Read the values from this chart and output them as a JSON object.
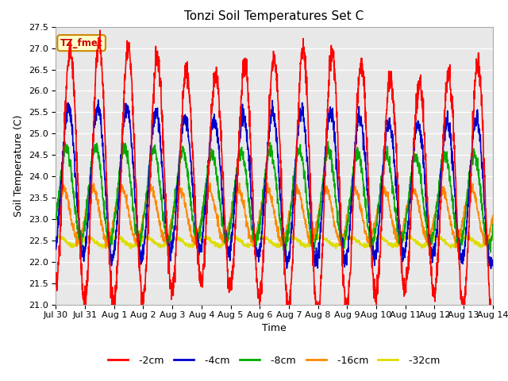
{
  "title": "Tonzi Soil Temperatures Set C",
  "xlabel": "Time",
  "ylabel": "Soil Temperature (C)",
  "ylim": [
    21.0,
    27.5
  ],
  "yticks": [
    21.0,
    21.5,
    22.0,
    22.5,
    23.0,
    23.5,
    24.0,
    24.5,
    25.0,
    25.5,
    26.0,
    26.5,
    27.0,
    27.5
  ],
  "series": {
    "-2cm": {
      "color": "#ff0000",
      "lw": 1.2
    },
    "-4cm": {
      "color": "#0000cc",
      "lw": 1.2
    },
    "-8cm": {
      "color": "#00aa00",
      "lw": 1.2
    },
    "-16cm": {
      "color": "#ff8800",
      "lw": 1.2
    },
    "-32cm": {
      "color": "#dddd00",
      "lw": 1.2
    }
  },
  "xtick_labels": [
    "Jul 30",
    "Jul 31",
    "Aug 1",
    "Aug 2",
    "Aug 3",
    "Aug 4",
    "Aug 5",
    "Aug 6",
    "Aug 7",
    "Aug 8",
    "Aug 9",
    "Aug 10",
    "Aug 11",
    "Aug 12",
    "Aug 13",
    "Aug 14"
  ],
  "n_days": 15,
  "annotation_text": "TZ_fmet",
  "annotation_bg": "#ffffcc",
  "annotation_border": "#cc8800",
  "fig_bg": "#ffffff",
  "plot_bg": "#e8e8e8",
  "grid_color": "#ffffff",
  "title_fontsize": 11,
  "label_fontsize": 9,
  "tick_fontsize": 8
}
